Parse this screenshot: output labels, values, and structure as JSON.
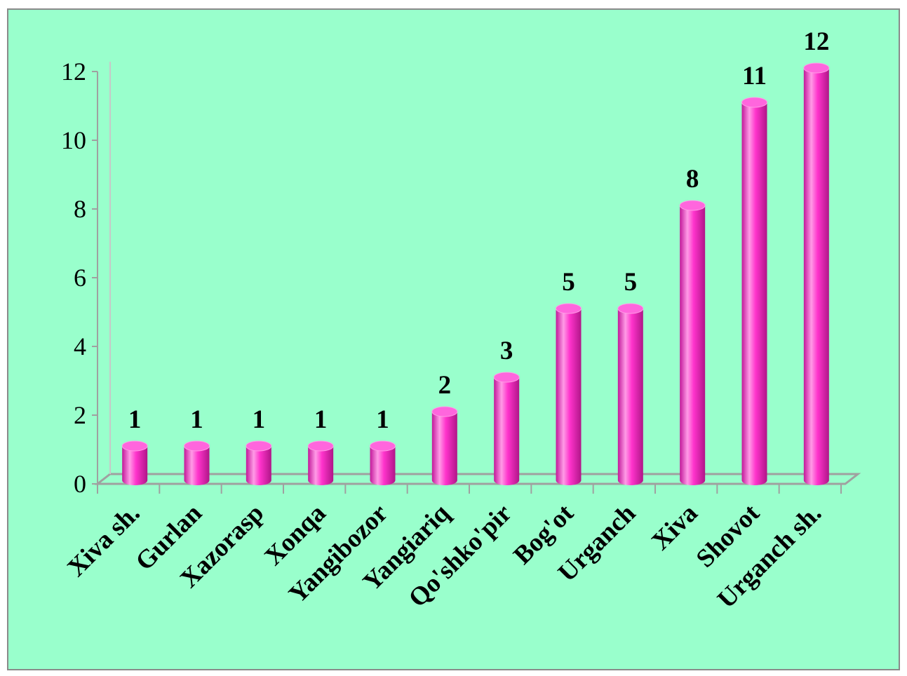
{
  "chart_data": {
    "type": "bar",
    "categories": [
      "Xiva sh.",
      "Gurlan",
      "Xazorasp",
      "Xonqa",
      "Yangibozor",
      "Yangiariq",
      "Qo'shko'pir",
      "Bog'ot",
      "Urganch",
      "Xiva",
      "Shovot",
      "Urganch sh."
    ],
    "values": [
      1,
      1,
      1,
      1,
      1,
      2,
      3,
      5,
      5,
      8,
      11,
      12
    ],
    "title": "",
    "xlabel": "",
    "ylabel": "",
    "ylim": [
      0,
      12
    ],
    "yticks": [
      "0",
      "2",
      "4",
      "6",
      "8",
      "10",
      "12"
    ],
    "grid": false,
    "legend": "none",
    "bar_style": "3d-cylinder",
    "colors": {
      "background": "#99ffcc",
      "bar_main": "#ff33cc",
      "bar_dark": "#c2189a",
      "bar_light": "#ff9be6",
      "bar_top": "#ff66dd",
      "axis": "#a0a0a0"
    }
  }
}
